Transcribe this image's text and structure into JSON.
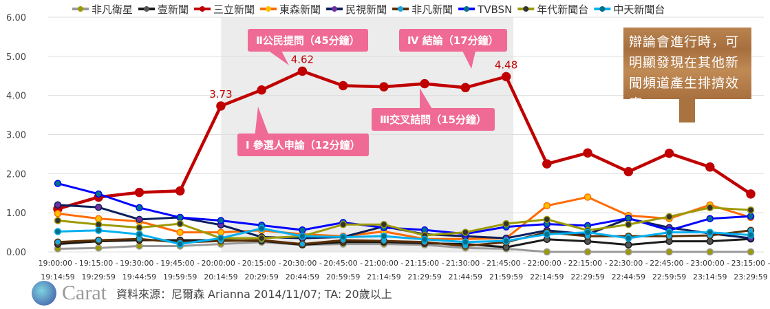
{
  "chart_data": {
    "type": "line",
    "ylim": [
      0,
      6
    ],
    "yticks": [
      "0.00",
      "1.00",
      "2.00",
      "3.00",
      "4.00",
      "5.00",
      "6.00"
    ],
    "categories": [
      [
        "19:00:00 -",
        "19:14:59"
      ],
      [
        "19:15:00 -",
        "19:29:59"
      ],
      [
        "19:30:00 -",
        "19:44:59"
      ],
      [
        "19:45:00 -",
        "19:59:59"
      ],
      [
        "20:00:00 -",
        "20:14:59"
      ],
      [
        "20:15:00 -",
        "20:29:59"
      ],
      [
        "20:30:00 -",
        "20:44:59"
      ],
      [
        "20:45:00 -",
        "20:59:59"
      ],
      [
        "21:00:00 -",
        "21:14:59"
      ],
      [
        "21:15:00 -",
        "21:29:59"
      ],
      [
        "21:30:00 -",
        "21:44:59"
      ],
      [
        "21:45:00 -",
        "21:59:59"
      ],
      [
        "22:00:00 -",
        "22:14:59"
      ],
      [
        "22:15:00 -",
        "22:29:59"
      ],
      [
        "22:30:00 -",
        "22:44:59"
      ],
      [
        "22:45:00 -",
        "22:59:59"
      ],
      [
        "23:00:00 -",
        "23:14:59"
      ],
      [
        "23:15:00 -",
        "23:29:59"
      ]
    ],
    "series": [
      {
        "name": "非凡衛星",
        "color": "#999999",
        "marker": "#9c9a00",
        "values": [
          0.08,
          0.1,
          0.15,
          0.15,
          0.2,
          0.25,
          0.18,
          0.2,
          0.2,
          0.18,
          0.1,
          0.08,
          0.0,
          0.0,
          0.0,
          0.0,
          0.0,
          0.0
        ]
      },
      {
        "name": "壹新聞",
        "color": "#1a1a1a",
        "marker": "#555555",
        "values": [
          0.2,
          0.27,
          0.3,
          0.3,
          0.3,
          0.28,
          0.18,
          0.25,
          0.25,
          0.22,
          0.2,
          0.12,
          0.32,
          0.27,
          0.18,
          0.27,
          0.27,
          0.33
        ]
      },
      {
        "name": "三立新聞",
        "color": "#c00000",
        "marker": "#c00000",
        "values": [
          1.1,
          1.4,
          1.52,
          1.56,
          3.73,
          4.14,
          4.62,
          4.25,
          4.22,
          4.3,
          4.2,
          4.48,
          2.25,
          2.53,
          2.05,
          2.52,
          2.17,
          1.48
        ]
      },
      {
        "name": "東森新聞",
        "color": "#ff6a00",
        "marker": "#ffc000",
        "values": [
          0.98,
          0.85,
          0.78,
          0.5,
          0.5,
          0.55,
          0.45,
          0.4,
          0.52,
          0.33,
          0.33,
          0.35,
          1.18,
          1.4,
          0.93,
          0.85,
          1.2,
          0.88
        ]
      },
      {
        "name": "民視新聞",
        "color": "#0a1f5c",
        "marker": "#7030a0",
        "values": [
          1.2,
          1.14,
          0.83,
          0.88,
          0.69,
          0.38,
          0.35,
          0.38,
          0.65,
          0.45,
          0.4,
          0.35,
          0.55,
          0.45,
          0.85,
          0.62,
          0.47,
          0.35
        ]
      },
      {
        "name": "非凡新聞",
        "color": "#5a2d00",
        "marker": "#1aa8e0",
        "values": [
          0.25,
          0.3,
          0.33,
          0.24,
          0.28,
          0.3,
          0.2,
          0.3,
          0.28,
          0.25,
          0.15,
          0.25,
          0.5,
          0.4,
          0.4,
          0.4,
          0.42,
          0.55
        ]
      },
      {
        "name": "TVBSN",
        "color": "#0000ff",
        "marker": "#00708a",
        "values": [
          1.75,
          1.48,
          1.13,
          0.88,
          0.8,
          0.68,
          0.56,
          0.75,
          0.62,
          0.56,
          0.46,
          0.64,
          0.71,
          0.67,
          0.86,
          0.55,
          0.85,
          0.91
        ]
      },
      {
        "name": "年代新聞台",
        "color": "#9c9a00",
        "marker": "#333333",
        "values": [
          0.8,
          0.7,
          0.62,
          0.72,
          0.35,
          0.35,
          0.4,
          0.7,
          0.7,
          0.42,
          0.5,
          0.72,
          0.83,
          0.55,
          0.7,
          0.9,
          1.13,
          1.07
        ]
      },
      {
        "name": "中天新聞台",
        "color": "#00b0f0",
        "marker": "#00708a",
        "values": [
          0.52,
          0.55,
          0.45,
          0.2,
          0.35,
          0.6,
          0.4,
          0.38,
          0.4,
          0.32,
          0.25,
          0.28,
          0.45,
          0.5,
          0.35,
          0.5,
          0.5,
          0.43
        ]
      }
    ],
    "data_labels": [
      {
        "series": "三立新聞",
        "index": 4,
        "text": "3.73"
      },
      {
        "series": "三立新聞",
        "index": 6,
        "text": "4.62"
      },
      {
        "series": "三立新聞",
        "index": 11,
        "text": "4.48"
      }
    ],
    "shaded_range": [
      4,
      11
    ],
    "legend": "top",
    "grid": true
  },
  "callouts": {
    "c1": "Ⅰ 參選人申論（12分鐘）",
    "c2": "Ⅱ公民提問（45分鐘）",
    "c3": "Ⅲ交叉詰問（15分鐘）",
    "c4": "Ⅳ 結論（17分鐘）"
  },
  "note": "辯論會進行時，可明顯發現在其他新聞頻道產生排擠效應。",
  "footer": {
    "logo": "Carat",
    "source": "資料來源：尼爾森 Arianna 2014/11/07; TA: 20歲以上"
  }
}
